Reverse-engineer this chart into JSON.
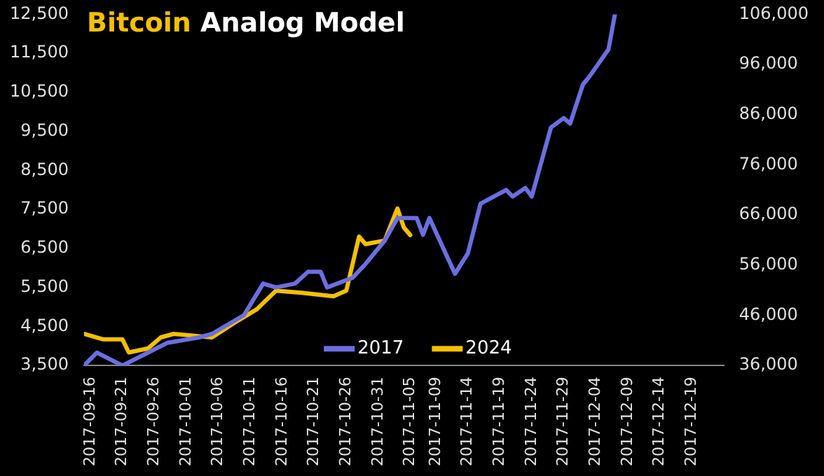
{
  "chart_data": {
    "type": "line",
    "title": "Bitcoin Analog Model",
    "xlim": [
      "2017-09-15",
      "2017-12-24"
    ],
    "xticks": [
      "2017-09-16",
      "2017-09-21",
      "2017-09-26",
      "2017-10-01",
      "2017-10-06",
      "2017-10-11",
      "2017-10-16",
      "2017-10-21",
      "2017-10-26",
      "2017-10-31",
      "2017-11-05",
      "2017-11-09",
      "2017-11-14",
      "2017-11-19",
      "2017-11-24",
      "2017-11-29",
      "2017-12-04",
      "2017-12-09",
      "2017-12-14",
      "2017-12-19"
    ],
    "ylim": [
      3500,
      12500
    ],
    "yticks": [
      {
        "value": 3500,
        "label": "3,500"
      },
      {
        "value": 4500,
        "label": "4,500"
      },
      {
        "value": 5500,
        "label": "5,500"
      },
      {
        "value": 6500,
        "label": "6,500"
      },
      {
        "value": 7500,
        "label": "7,500"
      },
      {
        "value": 8500,
        "label": "8,500"
      },
      {
        "value": 9500,
        "label": "9,500"
      },
      {
        "value": 10500,
        "label": "10,500"
      },
      {
        "value": 11500,
        "label": "11,500"
      },
      {
        "value": 12500,
        "label": "12,500"
      }
    ],
    "y2lim": [
      36000,
      106000
    ],
    "y2ticks": [
      {
        "value": 36000,
        "label": "36,000"
      },
      {
        "value": 46000,
        "label": "46,000"
      },
      {
        "value": 56000,
        "label": "56,000"
      },
      {
        "value": 66000,
        "label": "66,000"
      },
      {
        "value": 76000,
        "label": "76,000"
      },
      {
        "value": 86000,
        "label": "86,000"
      },
      {
        "value": 96000,
        "label": "96,000"
      },
      {
        "value": 106000,
        "label": "106,000"
      }
    ],
    "grid": false,
    "legend": "bottom",
    "marker": "none",
    "line_style": "solid",
    "series": [
      {
        "name": "2017",
        "color": "#6a6fe0",
        "x": [
          "2017-09-15",
          "2017-09-17",
          "2017-09-21",
          "2017-09-25",
          "2017-09-28",
          "2017-10-03",
          "2017-10-05",
          "2017-10-10",
          "2017-10-13",
          "2017-10-15",
          "2017-10-18",
          "2017-10-20",
          "2017-10-22",
          "2017-10-23",
          "2017-10-27",
          "2017-10-29",
          "2017-11-01",
          "2017-11-03",
          "2017-11-06",
          "2017-11-07",
          "2017-11-08",
          "2017-11-12",
          "2017-11-14",
          "2017-11-16",
          "2017-11-20",
          "2017-11-21",
          "2017-11-23",
          "2017-11-24",
          "2017-11-27",
          "2017-11-29",
          "2017-11-30",
          "2017-12-02",
          "2017-12-03",
          "2017-12-06",
          "2017-12-07"
        ],
        "values": [
          3500,
          3830,
          3500,
          3830,
          4080,
          4220,
          4310,
          4790,
          5600,
          5500,
          5600,
          5900,
          5900,
          5500,
          5750,
          6100,
          6700,
          7280,
          7280,
          6850,
          7280,
          5850,
          6370,
          7650,
          8000,
          7830,
          8050,
          7830,
          9600,
          9840,
          9700,
          10700,
          10900,
          11600,
          12500
        ]
      },
      {
        "name": "2024",
        "color": "#f5c000",
        "axis": "y2",
        "x": [
          "2017-09-15",
          "2017-09-18",
          "2017-09-21",
          "2017-09-22",
          "2017-09-25",
          "2017-09-27",
          "2017-09-29",
          "2017-10-05",
          "2017-10-09",
          "2017-10-12",
          "2017-10-15",
          "2017-10-19",
          "2017-10-24",
          "2017-10-26",
          "2017-10-28",
          "2017-10-29",
          "2017-11-01",
          "2017-11-03",
          "2017-11-04",
          "2017-11-05"
        ],
        "values": [
          42300,
          41200,
          41200,
          38600,
          39400,
          41600,
          42300,
          41600,
          44900,
          47200,
          50900,
          50500,
          49800,
          50900,
          61700,
          60200,
          60900,
          67300,
          63500,
          62000
        ]
      }
    ]
  }
}
